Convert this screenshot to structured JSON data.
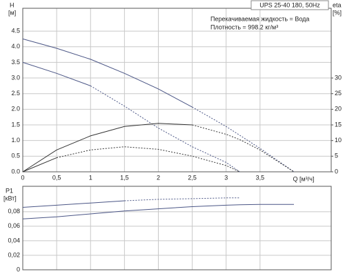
{
  "chart_data": [
    {
      "type": "line",
      "y_label": "H",
      "y_unit": "[м]",
      "y2_label": "eta",
      "y2_unit": "[%]",
      "x_label": "Q [м³/ч]",
      "title": "UPS 25-40 180, 50Hz",
      "annotations": [
        "Перекачиваемая жидкость = Вода",
        "Плотность = 998.2 кг/м³"
      ],
      "x": [
        0,
        0.5,
        1,
        1.5,
        2,
        2.5,
        3,
        3.2,
        3.5,
        4
      ],
      "xlim": [
        0,
        4.55
      ],
      "xticks": [
        0,
        {
          "value": 0.5,
          "label": "0,5"
        },
        1,
        {
          "value": 1.5,
          "label": "1,5"
        },
        2,
        {
          "value": 2.5,
          "label": "2,5"
        },
        3,
        {
          "value": 3.5,
          "label": "3,5"
        }
      ],
      "ylim": [
        0,
        5.23
      ],
      "yticks": [
        {
          "value": 0,
          "label": "0.0"
        },
        0.5,
        {
          "value": 1,
          "label": "1.0"
        },
        1.5,
        {
          "value": 2,
          "label": "2.0"
        },
        2.5,
        {
          "value": 3,
          "label": "3.0"
        },
        3.5,
        {
          "value": 4,
          "label": "4.0"
        },
        4.5
      ],
      "y2lim": [
        0,
        52.3
      ],
      "y2ticks": [
        0,
        5,
        10,
        15,
        20,
        25,
        30
      ],
      "grid": true,
      "series": [
        {
          "color": "#4a5585",
          "style": "solid",
          "axis": "y",
          "values": [
            4.25,
            3.95,
            3.6,
            3.15,
            2.65,
            2.07,
            null,
            null,
            null,
            null
          ]
        },
        {
          "color": "#4a5585",
          "style": "dashed",
          "axis": "y",
          "values": [
            null,
            null,
            null,
            null,
            null,
            2.07,
            1.45,
            1.17,
            0.75,
            0
          ]
        },
        {
          "color": "#4a5585",
          "style": "solid",
          "axis": "y",
          "values": [
            3.5,
            3.15,
            2.75,
            null,
            null,
            null,
            null,
            null,
            null,
            null
          ]
        },
        {
          "color": "#4a5585",
          "style": "dashed",
          "axis": "y",
          "values": [
            null,
            null,
            2.75,
            2.1,
            1.4,
            0.8,
            0.3,
            0,
            null,
            null
          ]
        },
        {
          "color": "#333333",
          "style": "solid",
          "axis": "y2",
          "values": [
            0,
            7,
            11.5,
            14.5,
            15.5,
            15,
            null,
            null,
            null,
            null
          ]
        },
        {
          "color": "#333333",
          "style": "dashed",
          "axis": "y2",
          "values": [
            null,
            null,
            null,
            null,
            null,
            15,
            12,
            10.3,
            7,
            0
          ]
        },
        {
          "color": "#333333",
          "style": "solid",
          "axis": "y2",
          "values": [
            0,
            4.5,
            null,
            null,
            null,
            null,
            null,
            null,
            null,
            null
          ]
        },
        {
          "color": "#333333",
          "style": "dashed",
          "axis": "y2",
          "values": [
            null,
            4.5,
            7,
            8,
            7.2,
            5,
            2,
            0,
            null,
            null
          ]
        }
      ]
    },
    {
      "type": "line",
      "y_label": "P1",
      "y_unit": "[кВт]",
      "x": [
        0,
        0.5,
        1,
        1.5,
        2,
        2.5,
        3,
        3.2,
        3.5,
        4
      ],
      "xlim": [
        0,
        4.55
      ],
      "ylim": [
        0,
        0.115
      ],
      "yticks": [
        0,
        {
          "value": 0.02,
          "label": "0,02"
        },
        {
          "value": 0.04,
          "label": "0,04"
        },
        {
          "value": 0.06,
          "label": "0,06"
        },
        {
          "value": 0.08,
          "label": "0,08"
        }
      ],
      "grid": true,
      "series": [
        {
          "color": "#4a5585",
          "style": "solid",
          "values": [
            0.086,
            0.089,
            0.092,
            0.095,
            null,
            null,
            null,
            null,
            null,
            null
          ]
        },
        {
          "color": "#4a5585",
          "style": "dashed",
          "values": [
            null,
            null,
            null,
            0.095,
            0.097,
            0.098,
            0.099,
            0.099,
            null,
            null
          ]
        },
        {
          "color": "#4a5585",
          "style": "solid",
          "values": [
            0.07,
            0.073,
            0.077,
            0.081,
            0.084,
            0.087,
            0.089,
            0.0895,
            0.09,
            0.09
          ]
        }
      ]
    }
  ]
}
